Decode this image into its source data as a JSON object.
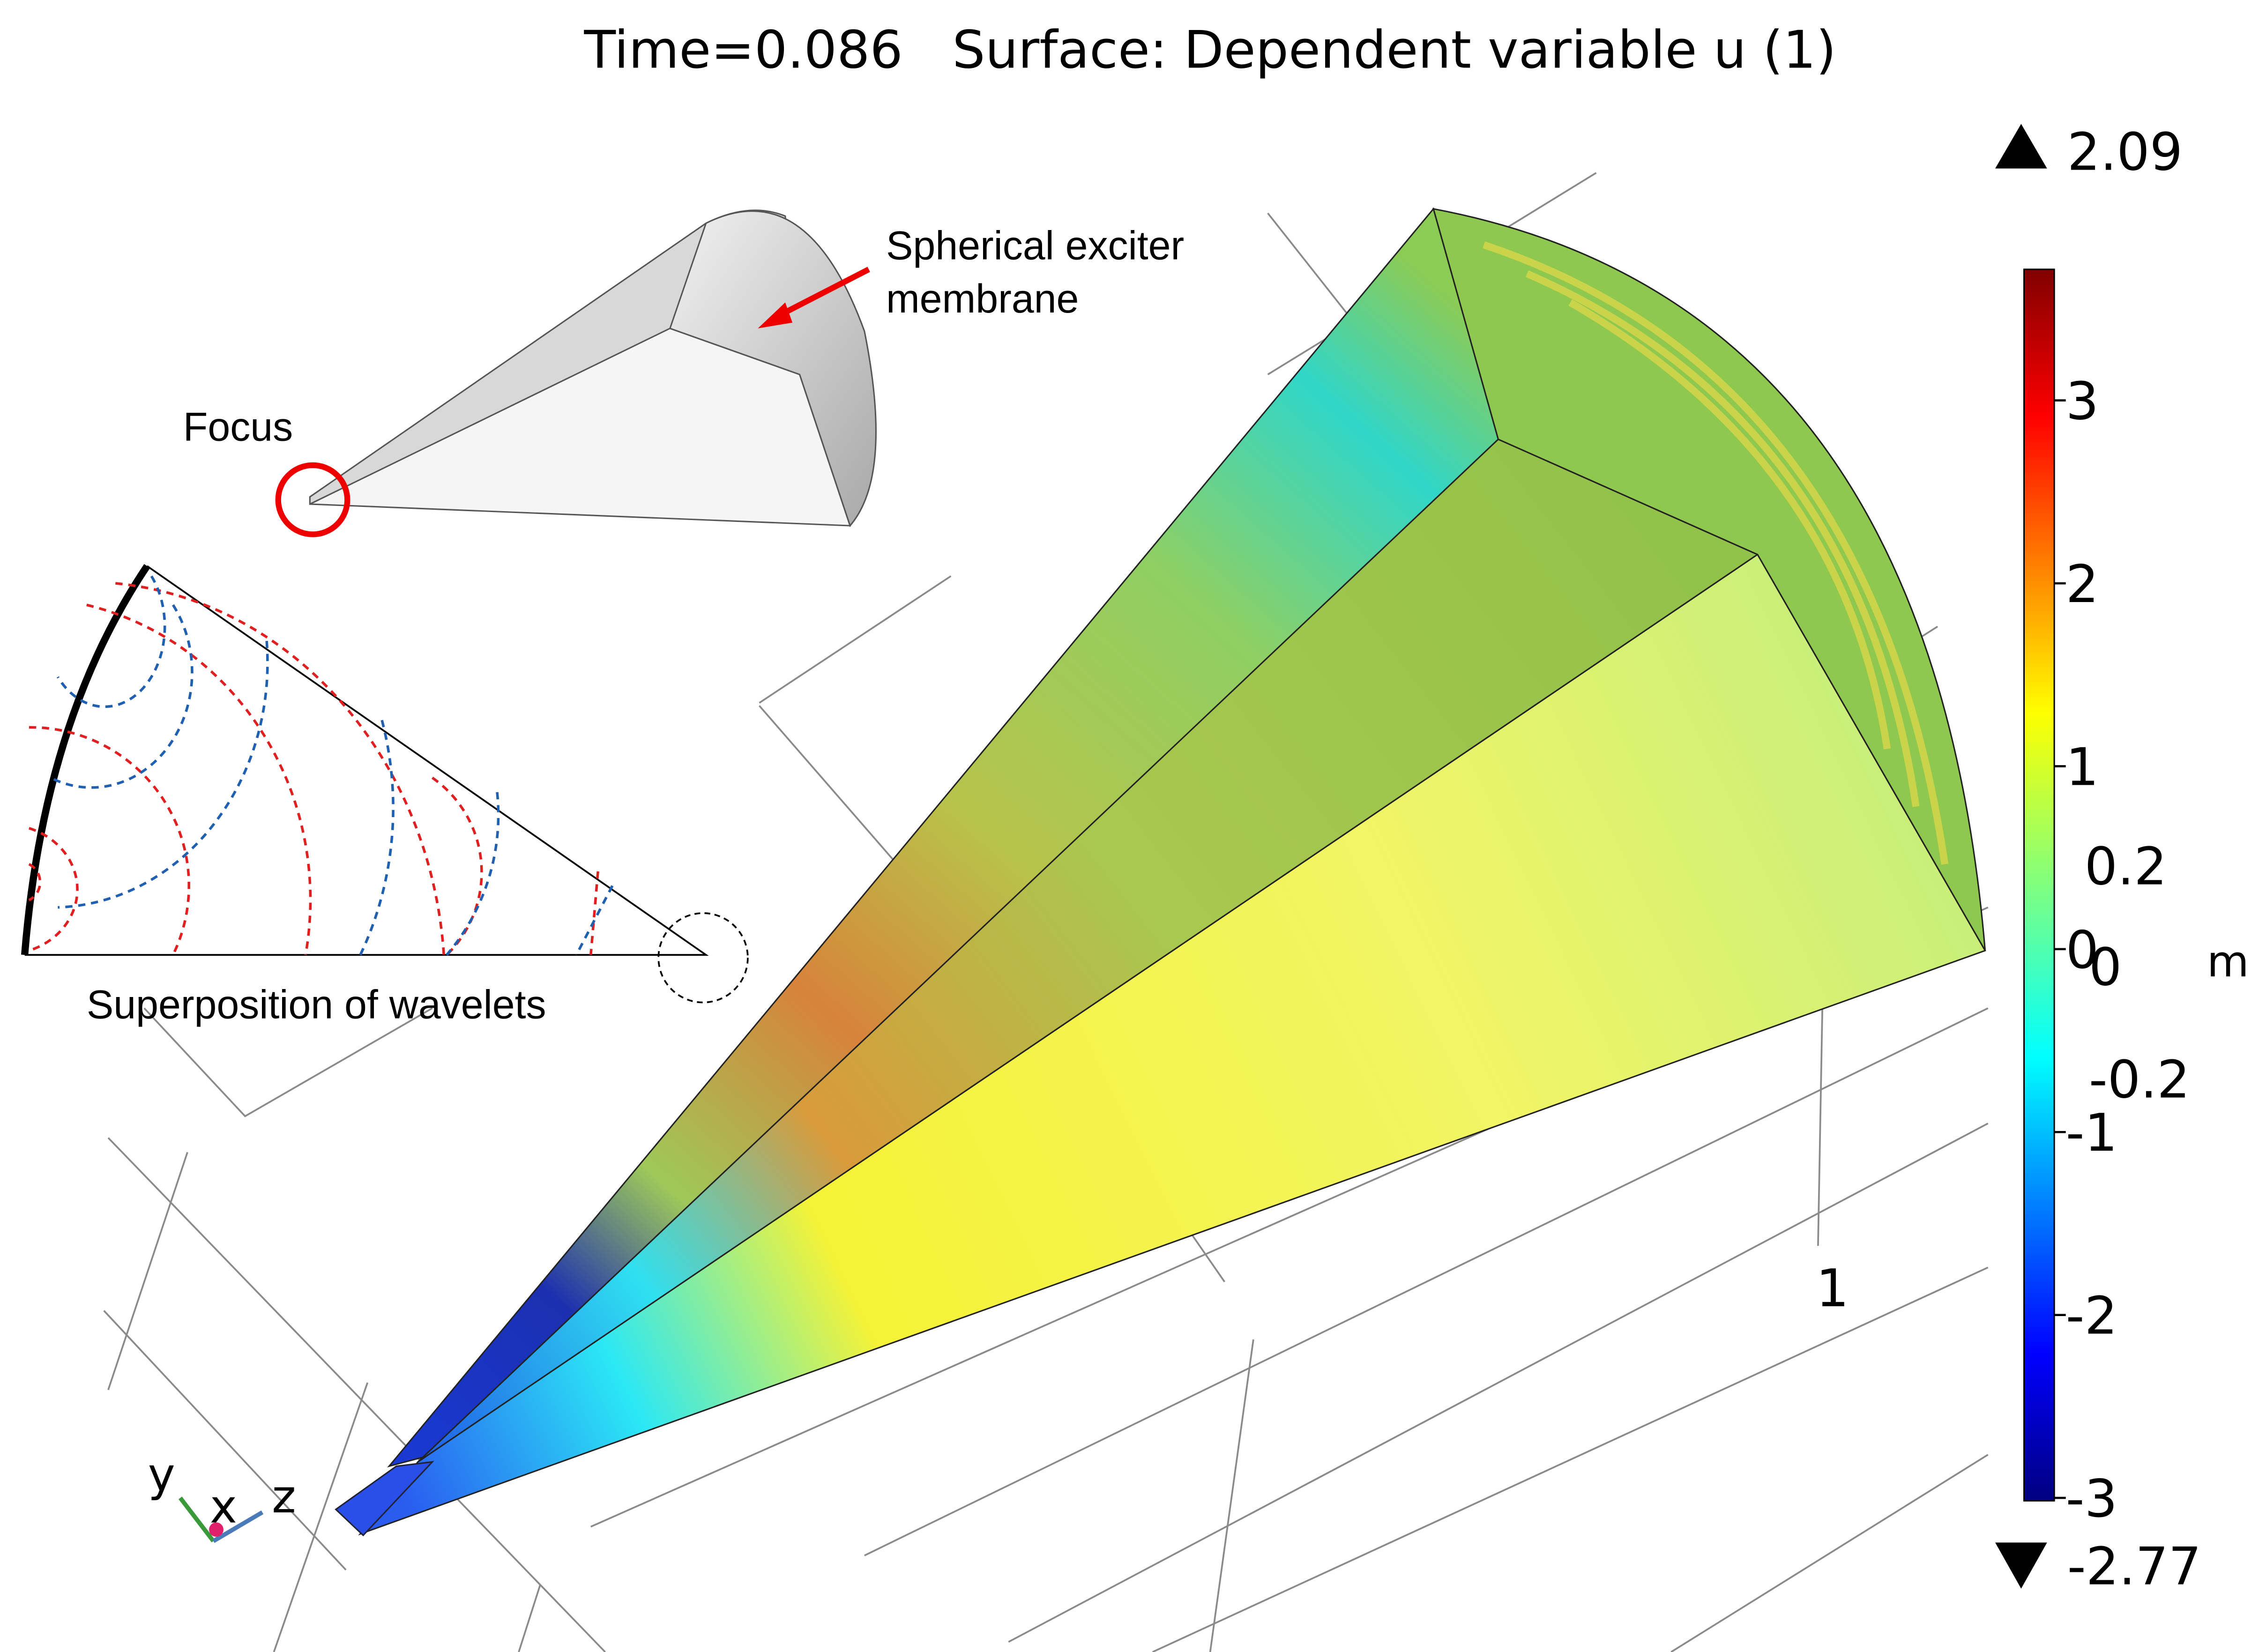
{
  "title": "Time=0.086   Surface: Dependent variable u (1)",
  "colorbar": {
    "max_label": "2.09",
    "min_label": "-2.77",
    "ticks": [
      "3",
      "2",
      "1",
      "0",
      "-1",
      "-2",
      "-3"
    ],
    "overlay_ticks": [
      "0.2",
      "0",
      "-0.2"
    ],
    "unit": "m"
  },
  "annotations": {
    "exciter": [
      "Spherical exciter",
      "membrane"
    ],
    "focus": "Focus",
    "wavelets": "Superposition of wavelets"
  },
  "axis_label": "1",
  "triad": {
    "y": "y",
    "x": "x",
    "z": "z"
  }
}
